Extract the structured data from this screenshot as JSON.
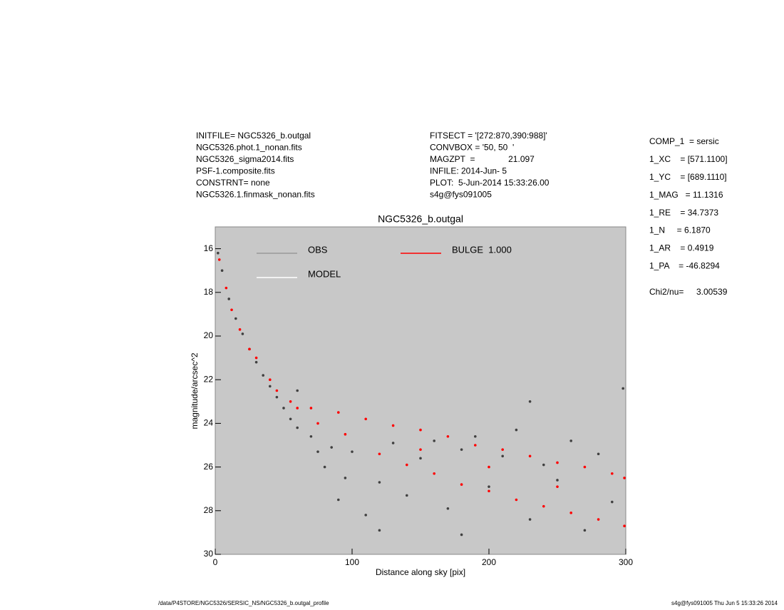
{
  "header": {
    "left": [
      "INITFILE= NGC5326_b.outgal",
      "NGC5326.phot.1_nonan.fits",
      "NGC5326_sigma2014.fits",
      "PSF-1.composite.fits",
      "CONSTRNT= none",
      "NGC5326.1.finmask_nonan.fits"
    ],
    "middle": [
      "FITSECT = '[272:870,390:988]'",
      "CONVBOX = '50, 50  '",
      "MAGZPT  =              21.097",
      "INFILE: 2014-Jun- 5",
      "PLOT:  5-Jun-2014 15:33:26.00",
      "s4g@fys091005"
    ],
    "params": [
      "COMP_1  = sersic",
      "1_XC    = [571.1100]",
      "1_YC    = [689.1110]",
      "1_MAG   = 11.1316",
      "1_RE    = 34.7373",
      "1_N     = 6.1870",
      "1_AR    = 0.4919",
      "1_PA    = -46.8294"
    ],
    "chi2_label": "Chi2/nu=",
    "chi2_value": "3.00539"
  },
  "footer": {
    "left": "/data/P4STORE/NGC5326/SERSIC_NS/NGC5326_b.outgal_profile",
    "right": "s4g@fys091005  Thu Jun  5 15:33:26 2014"
  },
  "chart_data": {
    "type": "scatter",
    "title": "NGC5326_b.outgal",
    "x_label": "Distance along sky [pix]",
    "y_label": "magnitude/arcsec^2",
    "xlim": [
      0,
      300
    ],
    "xticks": [
      0,
      100,
      200,
      300
    ],
    "ylim": [
      30,
      15
    ],
    "yticks": [
      16,
      18,
      20,
      22,
      24,
      26,
      28,
      30
    ],
    "background": "#c8c8c8",
    "series": [
      {
        "name": "OBS",
        "color": "#404040",
        "legend_color": "#999999",
        "x": [
          2,
          5,
          10,
          15,
          20,
          25,
          30,
          35,
          40,
          45,
          50,
          55,
          60,
          60,
          70,
          75,
          80,
          85,
          90,
          95,
          100,
          110,
          120,
          130,
          140,
          150,
          160,
          170,
          180,
          190,
          200,
          210,
          220,
          230,
          240,
          250,
          260,
          270,
          280,
          290,
          298,
          180,
          120,
          230
        ],
        "values": [
          16.2,
          17.0,
          18.3,
          19.2,
          19.9,
          20.6,
          21.2,
          21.8,
          22.3,
          22.8,
          23.3,
          23.8,
          24.2,
          22.5,
          24.6,
          25.3,
          26.0,
          25.1,
          27.5,
          26.5,
          25.3,
          28.2,
          26.7,
          24.9,
          27.3,
          25.6,
          24.8,
          27.9,
          25.2,
          24.6,
          26.9,
          25.5,
          24.3,
          28.4,
          25.9,
          26.6,
          24.8,
          28.9,
          25.4,
          27.6,
          22.4,
          29.1,
          28.9,
          23.0
        ]
      },
      {
        "name": "MODEL",
        "color": "#ffffff",
        "legend_color": "#ffffff",
        "x": [],
        "values": []
      },
      {
        "name": "BULGE  1.000",
        "color": "#ff0000",
        "legend_color": "#ff0000",
        "x": [
          3,
          8,
          12,
          18,
          25,
          30,
          40,
          45,
          55,
          60,
          70,
          75,
          90,
          95,
          110,
          120,
          130,
          140,
          150,
          160,
          170,
          180,
          190,
          200,
          210,
          220,
          230,
          240,
          250,
          260,
          270,
          280,
          290,
          299,
          299,
          150,
          200,
          250
        ],
        "values": [
          16.5,
          17.8,
          18.8,
          19.7,
          20.6,
          21.0,
          22.0,
          22.5,
          23.0,
          23.3,
          23.3,
          24.0,
          23.5,
          24.5,
          23.8,
          25.4,
          24.1,
          25.9,
          24.3,
          26.3,
          24.6,
          26.8,
          25.0,
          27.1,
          25.2,
          27.5,
          25.5,
          27.8,
          25.8,
          28.1,
          26.0,
          28.4,
          26.3,
          28.7,
          26.5,
          25.2,
          26.0,
          26.9
        ]
      }
    ]
  }
}
